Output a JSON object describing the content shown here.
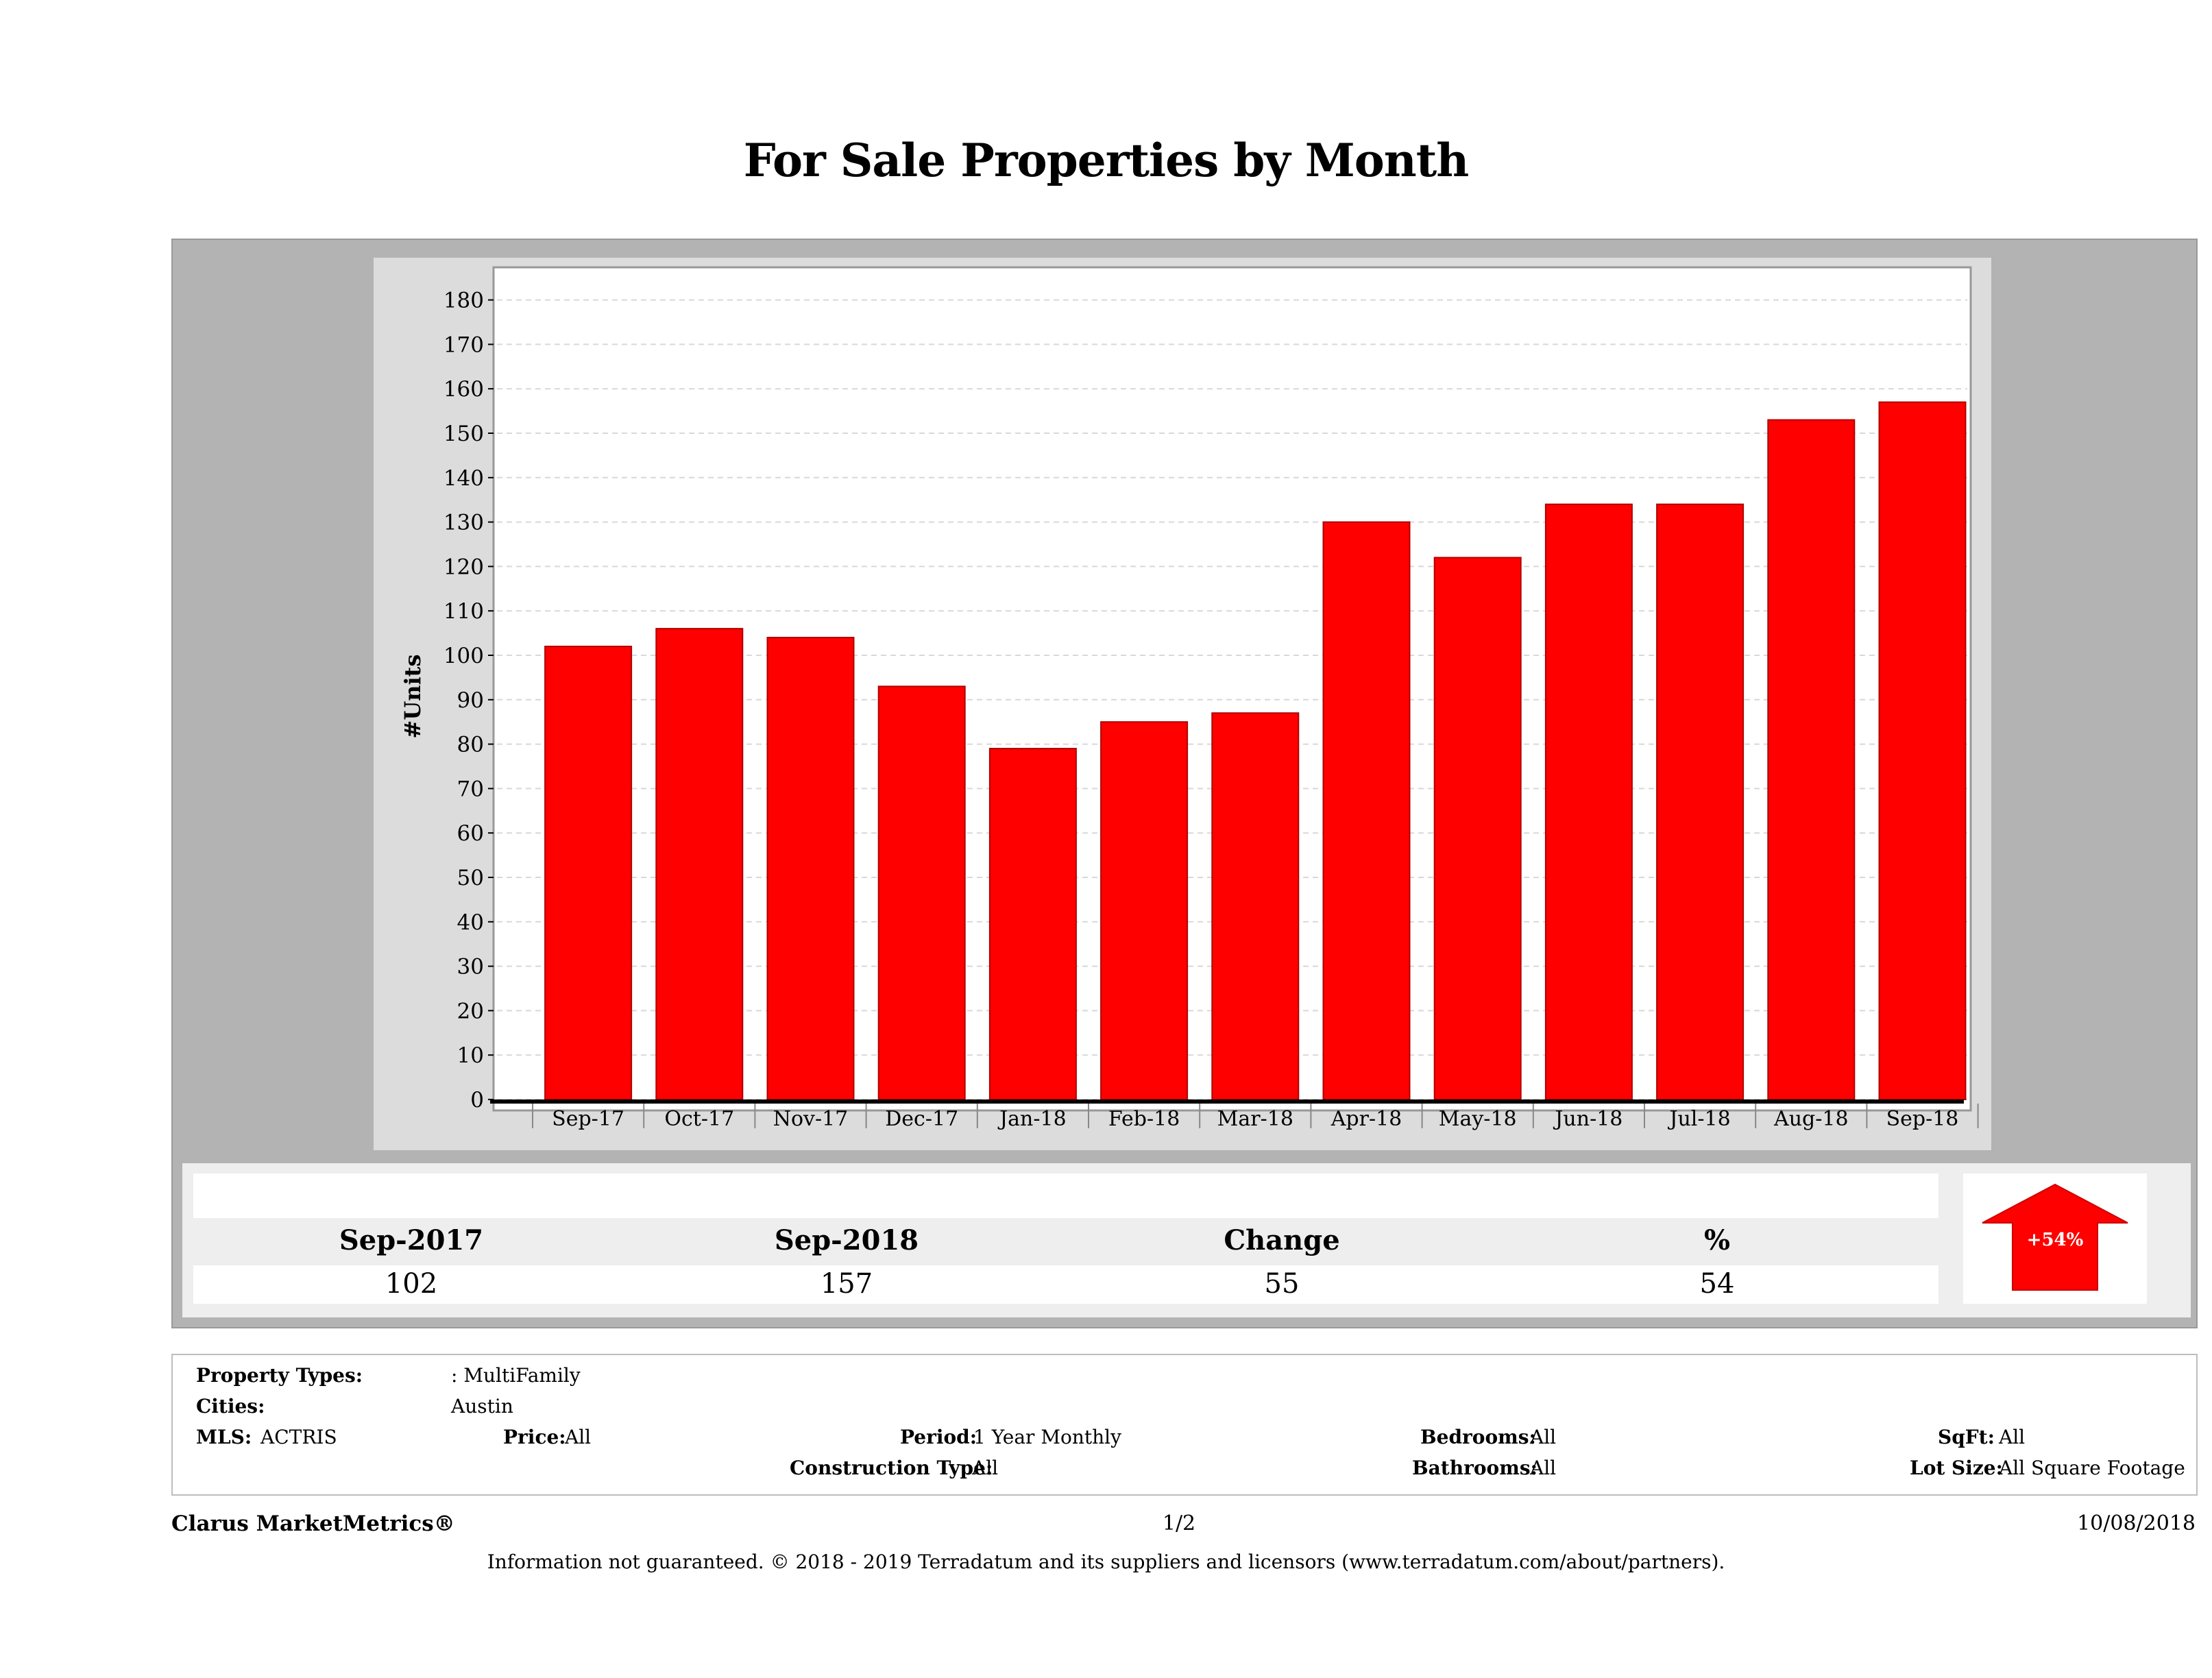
{
  "title": "For Sale Properties by Month",
  "chart_data": {
    "type": "bar",
    "title": "For Sale Properties by Month",
    "ylabel": "#Units",
    "xlabel": "",
    "categories": [
      "Sep-17",
      "Oct-17",
      "Nov-17",
      "Dec-17",
      "Jan-18",
      "Feb-18",
      "Mar-18",
      "Apr-18",
      "May-18",
      "Jun-18",
      "Jul-18",
      "Aug-18",
      "Sep-18"
    ],
    "values": [
      102,
      106,
      104,
      93,
      79,
      85,
      87,
      130,
      122,
      134,
      134,
      153,
      157
    ],
    "ylim": [
      0,
      185
    ],
    "yticks": [
      0,
      10,
      20,
      30,
      40,
      50,
      60,
      70,
      80,
      90,
      100,
      110,
      120,
      130,
      140,
      150,
      160,
      170,
      180
    ],
    "grid": true,
    "bar_color": "#ff0000"
  },
  "summary": {
    "labels": [
      "Sep-2017",
      "Sep-2018",
      "Change",
      "%"
    ],
    "values": [
      "102",
      "157",
      "55",
      "54"
    ],
    "badge": "+54%",
    "badge_color": "#ff0000"
  },
  "info": {
    "property_types_label": "Property Types:",
    "property_types_value": ": MultiFamily",
    "cities_label": "Cities:",
    "cities_value": "Austin",
    "mls_label": "MLS:",
    "mls_value": "ACTRIS",
    "price_label": "Price:",
    "price_value": "All",
    "period_label": "Period:",
    "period_value": "1 Year Monthly",
    "construction_label": "Construction Type:",
    "construction_value": "All",
    "bedrooms_label": "Bedrooms:",
    "bedrooms_value": "All",
    "bathrooms_label": "Bathrooms:",
    "bathrooms_value": "All",
    "sqft_label": "SqFt:",
    "sqft_value": "All",
    "lotsize_label": "Lot Size:",
    "lotsize_value": "All Square Footage"
  },
  "footer": {
    "brand": "Clarus MarketMetrics®",
    "page": "1/2",
    "date": "10/08/2018",
    "disclaimer": "Information not guaranteed. © 2018 - 2019 Terradatum and its suppliers and licensors (www.terradatum.com/about/partners)."
  }
}
